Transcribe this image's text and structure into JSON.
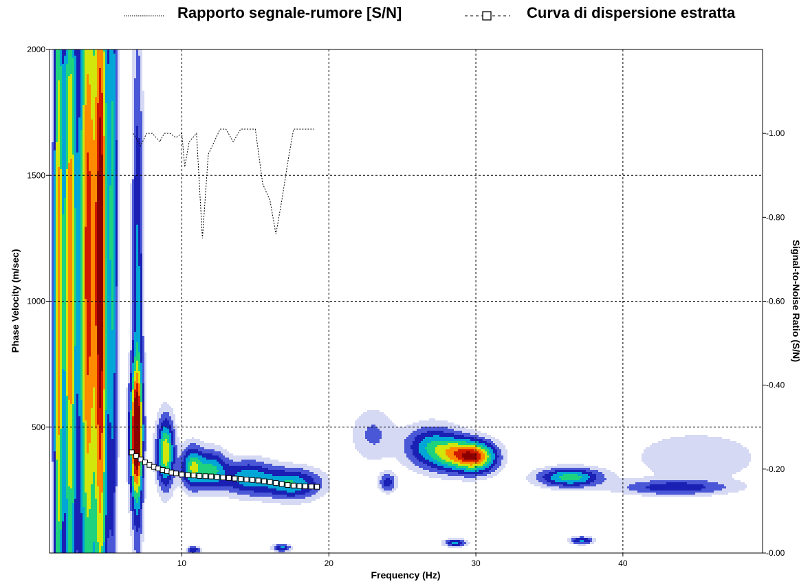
{
  "chart_data": {
    "type": "heatmap",
    "legend": [
      {
        "label": "Rapporto segnale-rumore [S/N]",
        "line_style": "dotted"
      },
      {
        "label": "Curva di dispersione estratta",
        "line_style": "dashed",
        "marker": "square"
      }
    ],
    "legend_placement": "top",
    "xlabel": "Frequency (Hz)",
    "ylabel": "Phase Velocity (m/sec)",
    "y2label": "Signal-to-Noise Ratio (S/N)",
    "xlim": [
      1,
      49.5
    ],
    "ylim": [
      0,
      2000
    ],
    "y2lim": [
      0,
      1.2
    ],
    "xticks": [
      10,
      20,
      30,
      40
    ],
    "yticks": [
      500,
      1000,
      1500,
      2000
    ],
    "y2ticks": [
      "0.00",
      "0.20",
      "0.40",
      "0.60",
      "0.80",
      "1.00"
    ],
    "grid": true,
    "colors": {
      "colormap": [
        "#ffffff",
        "#d6d9f4",
        "#4a57d6",
        "#1a20b4",
        "#00a6d6",
        "#1ed27e",
        "#d2e60c",
        "#ff8a00",
        "#d01a00",
        "#8a0000"
      ],
      "snr_line": "#000000",
      "curve_marker_fill": "#ffffff",
      "curve_marker_stroke": "#000000"
    },
    "energy_blobs": [
      {
        "f": 1.6,
        "v": 1000,
        "wf": 0.22,
        "wv": 1150,
        "a": 0.78
      },
      {
        "f": 2.4,
        "v": 1080,
        "wf": 0.3,
        "wv": 1100,
        "a": 0.8
      },
      {
        "f": 3.6,
        "v": 1150,
        "wf": 0.4,
        "wv": 1100,
        "a": 0.9
      },
      {
        "f": 4.5,
        "v": 1150,
        "wf": 0.3,
        "wv": 1100,
        "a": 1.0
      },
      {
        "f": 5.3,
        "v": 1350,
        "wf": 0.22,
        "wv": 1000,
        "a": 0.5
      },
      {
        "f": 6.9,
        "v": 470,
        "wf": 0.3,
        "wv": 170,
        "a": 1.0
      },
      {
        "f": 7.0,
        "v": 1000,
        "wf": 0.25,
        "wv": 700,
        "a": 0.4
      },
      {
        "f": 8.9,
        "v": 400,
        "wf": 0.4,
        "wv": 90,
        "a": 0.7
      },
      {
        "f": 10.7,
        "v": 340,
        "wf": 0.5,
        "wv": 55,
        "a": 0.55
      },
      {
        "f": 12.0,
        "v": 330,
        "wf": 0.7,
        "wv": 50,
        "a": 0.48
      },
      {
        "f": 14.5,
        "v": 300,
        "wf": 1.2,
        "wv": 45,
        "a": 0.44
      },
      {
        "f": 17.5,
        "v": 275,
        "wf": 1.3,
        "wv": 40,
        "a": 0.48
      },
      {
        "f": 27.0,
        "v": 420,
        "wf": 1.2,
        "wv": 55,
        "a": 0.45
      },
      {
        "f": 28.9,
        "v": 390,
        "wf": 1.1,
        "wv": 45,
        "a": 0.6
      },
      {
        "f": 30.2,
        "v": 380,
        "wf": 0.9,
        "wv": 40,
        "a": 0.6
      },
      {
        "f": 36.4,
        "v": 300,
        "wf": 1.4,
        "wv": 25,
        "a": 0.55
      },
      {
        "f": 43.5,
        "v": 260,
        "wf": 2.5,
        "wv": 20,
        "a": 0.3
      },
      {
        "f": 24.0,
        "v": 280,
        "wf": 0.4,
        "wv": 25,
        "a": 0.3
      },
      {
        "f": 28.6,
        "v": 40,
        "wf": 0.5,
        "wv": 10,
        "a": 0.4
      },
      {
        "f": 37.2,
        "v": 50,
        "wf": 0.5,
        "wv": 10,
        "a": 0.4
      },
      {
        "f": 16.8,
        "v": 20,
        "wf": 0.4,
        "wv": 10,
        "a": 0.4
      },
      {
        "f": 10.8,
        "v": 12,
        "wf": 0.3,
        "wv": 10,
        "a": 0.35
      },
      {
        "f": 45.0,
        "v": 380,
        "wf": 3.0,
        "wv": 70,
        "a": 0.13
      },
      {
        "f": 23.0,
        "v": 470,
        "wf": 1.0,
        "wv": 70,
        "a": 0.16
      }
    ],
    "series": [
      {
        "name": "Rapporto segnale-rumore [S/N]",
        "axis": "right",
        "x": [
          6.7,
          7.2,
          7.6,
          8.0,
          8.5,
          8.8,
          9.2,
          9.6,
          10.0,
          10.2,
          10.5,
          11.0,
          11.4,
          11.8,
          12.2,
          12.6,
          13.0,
          13.5,
          14.0,
          14.5,
          15.0,
          15.5,
          16.0,
          16.4,
          16.8,
          17.2,
          17.6,
          18.0,
          18.5,
          19.0
        ],
        "y": [
          1.0,
          0.97,
          1.0,
          1.0,
          0.98,
          1.0,
          1.0,
          0.99,
          1.0,
          0.92,
          0.98,
          1.0,
          0.75,
          0.95,
          0.98,
          1.01,
          1.01,
          0.98,
          1.01,
          1.01,
          1.01,
          0.88,
          0.84,
          0.76,
          0.84,
          0.93,
          1.01,
          1.01,
          1.01,
          1.01
        ]
      },
      {
        "name": "Curva di dispersione estratta",
        "axis": "left",
        "x": [
          6.6,
          6.9,
          7.2,
          7.5,
          7.8,
          8.1,
          8.4,
          8.7,
          9.0,
          9.3,
          9.6,
          10.0,
          10.4,
          10.8,
          11.2,
          11.6,
          12.0,
          12.4,
          12.8,
          13.2,
          13.6,
          14.0,
          14.4,
          14.8,
          15.2,
          15.6,
          16.0,
          16.4,
          16.8,
          17.2,
          17.6,
          18.0,
          18.4,
          18.8,
          19.2
        ],
        "y": [
          400,
          385,
          372,
          360,
          350,
          342,
          336,
          330,
          325,
          320,
          316,
          312,
          310,
          308,
          306,
          305,
          304,
          302,
          300,
          298,
          296,
          294,
          292,
          290,
          288,
          285,
          282,
          278,
          274,
          270,
          268,
          266,
          265,
          264,
          263
        ]
      }
    ]
  }
}
